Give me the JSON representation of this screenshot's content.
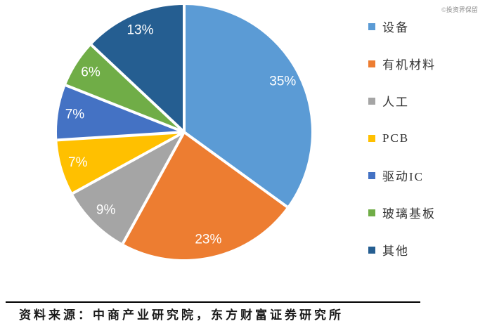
{
  "watermark": "©投资界保留",
  "source_note": "资料来源：中商产业研究院，东方财富证券研究所",
  "chart_data": {
    "type": "pie",
    "title": "",
    "categories": [
      "设备",
      "有机材料",
      "人工",
      "PCB",
      "驱动IC",
      "玻璃基板",
      "其他"
    ],
    "values": [
      35,
      23,
      9,
      7,
      7,
      6,
      13
    ],
    "value_labels": [
      "35%",
      "23%",
      "9%",
      "7%",
      "7%",
      "6%",
      "13%"
    ],
    "colors": [
      "#5B9BD5",
      "#ED7D31",
      "#A5A5A5",
      "#FFC000",
      "#4472C4",
      "#70AD47",
      "#255E91"
    ],
    "start_angle_deg": 0,
    "direction": "clockwise",
    "legend_position": "right",
    "separator_color": "#FFFFFF"
  }
}
